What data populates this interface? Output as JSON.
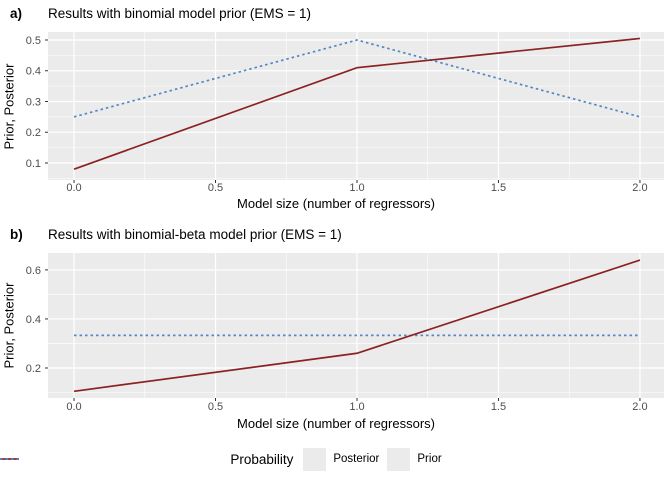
{
  "colors": {
    "posterior": "#8B2222",
    "prior": "#5585C5",
    "panel_bg": "#EBEBEB",
    "grid_major": "#FFFFFF",
    "grid_minor": "#FFFFFF",
    "tick_mark": "#333333",
    "tick_label": "#4D4D4D",
    "background": "#FFFFFF"
  },
  "legend": {
    "title": "Probability",
    "entries": [
      {
        "label": "Posterior",
        "series": "Posterior",
        "style": "solid",
        "color": "#8B2222"
      },
      {
        "label": "Prior",
        "series": "Prior",
        "style": "dotted",
        "color": "#5585C5"
      }
    ]
  },
  "chart_data": [
    {
      "id": "a",
      "type": "line",
      "panel_label": "a)",
      "title": "Results with binomial model prior (EMS = 1)",
      "xlabel": "Model size (number of regressors)",
      "ylabel": "Prior, Posterior",
      "x": [
        0,
        1,
        2
      ],
      "series": [
        {
          "name": "Prior",
          "values": [
            0.25,
            0.5,
            0.25
          ],
          "style": "dotted",
          "color_key": "prior"
        },
        {
          "name": "Posterior",
          "values": [
            0.08,
            0.41,
            0.505
          ],
          "style": "solid",
          "color_key": "posterior"
        }
      ],
      "x_ticks": [
        0.0,
        0.5,
        1.0,
        1.5,
        2.0
      ],
      "x_tick_labels": [
        "0.0",
        "0.5",
        "1.0",
        "1.5",
        "2.0"
      ],
      "x_minor_ticks": [
        0.25,
        0.75,
        1.25,
        1.75
      ],
      "y_ticks": [
        0.1,
        0.2,
        0.3,
        0.4,
        0.5
      ],
      "y_tick_labels": [
        "0.1",
        "0.2",
        "0.3",
        "0.4",
        "0.5"
      ],
      "y_minor_ticks": [
        0.05,
        0.15,
        0.25,
        0.35,
        0.45
      ],
      "xlim": [
        -0.092,
        2.085
      ],
      "ylim": [
        0.0447,
        0.526
      ],
      "grid": true,
      "legend_position": "bottom"
    },
    {
      "id": "b",
      "type": "line",
      "panel_label": "b)",
      "title": "Results with binomial-beta model prior (EMS = 1)",
      "xlabel": "Model size (number of regressors)",
      "ylabel": "Prior, Posterior",
      "x": [
        0,
        1,
        2
      ],
      "series": [
        {
          "name": "Prior",
          "values": [
            0.333,
            0.333,
            0.333
          ],
          "style": "dotted",
          "color_key": "prior"
        },
        {
          "name": "Posterior",
          "values": [
            0.105,
            0.26,
            0.64
          ],
          "style": "solid",
          "color_key": "posterior"
        }
      ],
      "x_ticks": [
        0.0,
        0.5,
        1.0,
        1.5,
        2.0
      ],
      "x_tick_labels": [
        "0.0",
        "0.5",
        "1.0",
        "1.5",
        "2.0"
      ],
      "x_minor_ticks": [
        0.25,
        0.75,
        1.25,
        1.75
      ],
      "y_ticks": [
        0.2,
        0.4,
        0.6
      ],
      "y_tick_labels": [
        "0.2",
        "0.4",
        "0.6"
      ],
      "y_minor_ticks": [
        0.1,
        0.3,
        0.5
      ],
      "xlim": [
        -0.092,
        2.085
      ],
      "ylim": [
        0.0776,
        0.669
      ],
      "grid": true,
      "legend_position": "bottom"
    }
  ]
}
